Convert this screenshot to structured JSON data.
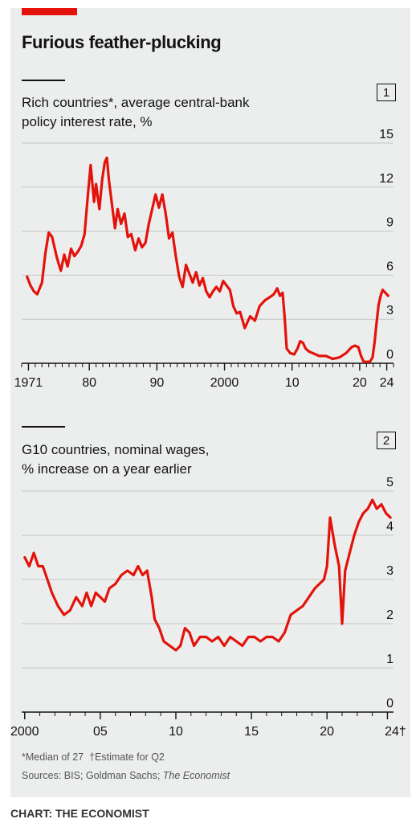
{
  "title": "Furious feather-plucking",
  "panel1": {
    "number": "1",
    "subtitle_line1": "Rich countries*, average central-bank",
    "subtitle_line2": "policy interest rate, %"
  },
  "panel2": {
    "number": "2",
    "subtitle_line1": "G10 countries, nominal wages,",
    "subtitle_line2": "% increase on a year earlier"
  },
  "footnote_line1_a": "*Median of 27",
  "footnote_line1_b": "†Estimate for Q2",
  "footnote_line2_a": "Sources: BIS; Goldman Sachs; ",
  "footnote_line2_b": "The Economist",
  "credit": "CHART: THE ECONOMIST",
  "colors": {
    "line": "#e3120b",
    "background": "#eceeed",
    "accent": "#e3120b"
  },
  "chart_data": [
    {
      "type": "line",
      "title": "Rich countries*, average central-bank policy interest rate, %",
      "x_ticks": [
        1971,
        1980,
        1990,
        2000,
        2010,
        2020,
        2024
      ],
      "x_tick_labels": [
        "1971",
        "80",
        "90",
        "2000",
        "10",
        "20",
        "24"
      ],
      "y_ticks": [
        0,
        3,
        6,
        9,
        12,
        15
      ],
      "y_tick_labels": [
        "0",
        "3",
        "6",
        "9",
        "12",
        "15"
      ],
      "xlim": [
        1970,
        2025
      ],
      "ylim": [
        0,
        15
      ],
      "grid": true,
      "series": [
        {
          "x": [
            1970.8,
            1971.3,
            1971.8,
            1972.3,
            1973.0,
            1973.5,
            1974.0,
            1974.5,
            1975.2,
            1975.8,
            1976.3,
            1976.8,
            1977.3,
            1977.8,
            1978.3,
            1978.8,
            1979.3,
            1979.8,
            1980.2,
            1980.7,
            1981.0,
            1981.5,
            1981.9,
            1982.3,
            1982.6,
            1982.9,
            1983.3,
            1983.8,
            1984.2,
            1984.7,
            1985.2,
            1985.7,
            1986.2,
            1986.8,
            1987.3,
            1987.8,
            1988.3,
            1988.8,
            1989.3,
            1989.8,
            1990.3,
            1990.8,
            1991.3,
            1991.8,
            1992.3,
            1992.8,
            1993.3,
            1993.8,
            1994.3,
            1994.8,
            1995.3,
            1995.8,
            1996.3,
            1996.8,
            1997.3,
            1997.8,
            1998.3,
            1998.8,
            1999.3,
            1999.8,
            2000.3,
            2000.8,
            2001.3,
            2001.8,
            2002.3,
            2003.0,
            2003.8,
            2004.5,
            2005.2,
            2006.0,
            2006.7,
            2007.3,
            2007.8,
            2008.2,
            2008.6,
            2008.9,
            2009.2,
            2009.7,
            2010.3,
            2010.8,
            2011.2,
            2011.6,
            2012.0,
            2012.5,
            2013.0,
            2014.0,
            2015.0,
            2016.0,
            2017.0,
            2018.0,
            2018.8,
            2019.3,
            2019.8,
            2020.2,
            2020.6,
            2021.0,
            2021.5,
            2021.9,
            2022.2,
            2022.5,
            2022.8,
            2023.1,
            2023.4,
            2023.8,
            2024.2
          ],
          "y": [
            5.9,
            5.3,
            4.9,
            4.7,
            5.5,
            7.5,
            8.9,
            8.6,
            7.2,
            6.3,
            7.4,
            6.6,
            7.8,
            7.3,
            7.6,
            8.0,
            8.8,
            11.5,
            13.5,
            11.0,
            12.2,
            10.5,
            12.5,
            13.7,
            14.0,
            12.5,
            11.0,
            9.2,
            10.5,
            9.5,
            10.2,
            8.6,
            8.8,
            7.7,
            8.5,
            7.9,
            8.2,
            9.5,
            10.5,
            11.5,
            10.6,
            11.5,
            10.2,
            8.5,
            8.9,
            7.3,
            5.9,
            5.2,
            6.7,
            6.1,
            5.5,
            6.2,
            5.3,
            5.8,
            4.9,
            4.5,
            4.9,
            5.2,
            4.9,
            5.6,
            5.3,
            5.0,
            3.9,
            3.4,
            3.5,
            2.4,
            3.2,
            2.9,
            3.9,
            4.3,
            4.5,
            4.7,
            5.1,
            4.6,
            4.8,
            3.1,
            1.0,
            0.7,
            0.6,
            1.0,
            1.5,
            1.4,
            1.0,
            0.8,
            0.7,
            0.5,
            0.5,
            0.3,
            0.4,
            0.7,
            1.1,
            1.2,
            1.1,
            0.5,
            0.1,
            0.1,
            0.1,
            0.4,
            1.4,
            2.8,
            4.0,
            4.6,
            5.0,
            4.8,
            4.6
          ]
        }
      ]
    },
    {
      "type": "line",
      "title": "G10 countries, nominal wages, % increase on a year earlier",
      "x_ticks": [
        2000,
        2005,
        2010,
        2015,
        2020,
        2024
      ],
      "x_tick_labels": [
        "2000",
        "05",
        "10",
        "15",
        "20",
        "24†"
      ],
      "y_ticks": [
        0,
        1,
        2,
        3,
        4,
        5
      ],
      "y_tick_labels": [
        "0",
        "1",
        "2",
        "3",
        "4",
        "5"
      ],
      "xlim": [
        1999.8,
        2024.4
      ],
      "ylim": [
        0,
        5
      ],
      "grid": true,
      "series": [
        {
          "x": [
            2000.0,
            2000.3,
            2000.6,
            2000.9,
            2001.2,
            2001.5,
            2001.8,
            2002.2,
            2002.6,
            2003.0,
            2003.4,
            2003.8,
            2004.1,
            2004.4,
            2004.7,
            2005.0,
            2005.3,
            2005.6,
            2006.0,
            2006.4,
            2006.8,
            2007.2,
            2007.5,
            2007.8,
            2008.1,
            2008.4,
            2008.6,
            2008.9,
            2009.2,
            2009.6,
            2010.0,
            2010.3,
            2010.6,
            2010.9,
            2011.2,
            2011.6,
            2012.0,
            2012.4,
            2012.8,
            2013.2,
            2013.6,
            2014.0,
            2014.4,
            2014.8,
            2015.2,
            2015.6,
            2016.0,
            2016.4,
            2016.8,
            2017.2,
            2017.6,
            2018.0,
            2018.4,
            2018.8,
            2019.2,
            2019.5,
            2019.8,
            2020.0,
            2020.2,
            2020.5,
            2020.8,
            2021.0,
            2021.2,
            2021.5,
            2021.8,
            2022.1,
            2022.4,
            2022.7,
            2023.0,
            2023.3,
            2023.6,
            2023.9,
            2024.2
          ],
          "y": [
            3.5,
            3.3,
            3.6,
            3.3,
            3.3,
            3.0,
            2.7,
            2.4,
            2.2,
            2.3,
            2.6,
            2.4,
            2.7,
            2.4,
            2.7,
            2.6,
            2.5,
            2.8,
            2.9,
            3.1,
            3.2,
            3.1,
            3.3,
            3.1,
            3.2,
            2.6,
            2.1,
            1.9,
            1.6,
            1.5,
            1.4,
            1.5,
            1.9,
            1.8,
            1.5,
            1.7,
            1.7,
            1.6,
            1.7,
            1.5,
            1.7,
            1.6,
            1.5,
            1.7,
            1.7,
            1.6,
            1.7,
            1.7,
            1.6,
            1.8,
            2.2,
            2.3,
            2.4,
            2.6,
            2.8,
            2.9,
            3.0,
            3.3,
            4.4,
            3.8,
            3.3,
            2.0,
            3.2,
            3.6,
            4.0,
            4.3,
            4.5,
            4.6,
            4.8,
            4.6,
            4.7,
            4.5,
            4.4
          ]
        }
      ]
    }
  ]
}
